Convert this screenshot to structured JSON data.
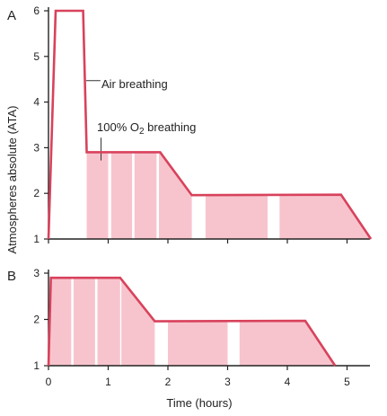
{
  "chart_data": [
    {
      "panel_label": "A",
      "type": "line",
      "ylabel": "Atmospheres absolute (ATA)",
      "xlabel": "",
      "xlim": [
        0,
        5.6
      ],
      "ylim": [
        1,
        6
      ],
      "x_ticks": [
        0,
        1,
        2,
        3,
        4,
        5
      ],
      "y_ticks": [
        1,
        2,
        3,
        4,
        5,
        6
      ],
      "x_tick_labels_shown": false,
      "grid": false,
      "series": [
        {
          "x": [
            0,
            0.12,
            0.58,
            0.64,
            1.87,
            2.4,
            4.9,
            5.4
          ],
          "y": [
            1,
            6,
            6,
            2.9,
            2.9,
            1.96,
            1.97,
            1
          ]
        }
      ],
      "oxygen_periods": [
        [
          0.64,
          1.0
        ],
        [
          1.05,
          1.4
        ],
        [
          1.44,
          1.81
        ],
        [
          1.85,
          2.4
        ],
        [
          2.63,
          3.67
        ],
        [
          3.87,
          5.4
        ]
      ],
      "annotations": [
        {
          "text": "Air breathing"
        },
        {
          "prefix": "100% ",
          "element": "O",
          "subscript": "2",
          "suffix": " breathing"
        }
      ],
      "colors": {
        "profile": "#d8425c",
        "oxygen_fill": "#f7c4cd"
      }
    },
    {
      "panel_label": "B",
      "type": "line",
      "ylabel": "",
      "xlabel": "Time (hours)",
      "xlim": [
        0,
        5.6
      ],
      "ylim": [
        1,
        3
      ],
      "x_ticks": [
        0,
        1,
        2,
        3,
        4,
        5
      ],
      "x_tick_labels": [
        "0",
        "1",
        "2",
        "3",
        "4",
        "5"
      ],
      "y_ticks": [
        1,
        2,
        3
      ],
      "grid": false,
      "series": [
        {
          "x": [
            0,
            0.04,
            1.2,
            1.78,
            4.3,
            4.8
          ],
          "y": [
            1,
            2.9,
            2.9,
            1.96,
            1.97,
            1
          ]
        }
      ],
      "oxygen_periods": [
        [
          0,
          0.38
        ],
        [
          0.42,
          0.78
        ],
        [
          0.82,
          1.2
        ],
        [
          1.22,
          1.78
        ],
        [
          2.0,
          3.0
        ],
        [
          3.2,
          4.8
        ]
      ],
      "colors": {
        "profile": "#d8425c",
        "oxygen_fill": "#f7c4cd"
      }
    }
  ]
}
